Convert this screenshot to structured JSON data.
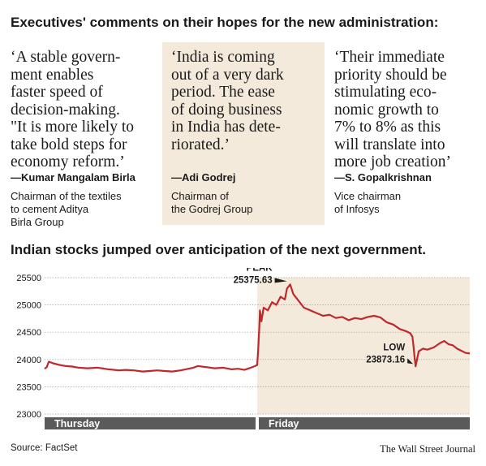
{
  "quotes_heading": "Executives' comments on their hopes for the new administration:",
  "quotes": [
    {
      "text": "‘A stable govern-\nment enables\nfaster speed of\ndecision-making.\n\"It is more likely to\ntake bold steps for\neconomy reform.’",
      "attribution": "—Kumar Mangalam Birla",
      "role": "Chairman of the textiles\nto cement Aditya\nBirla Group"
    },
    {
      "text": "‘India is coming\nout of a very dark\nperiod. The ease\nof doing business\nin India has dete-\nriorated.’",
      "attribution": "—Adi Godrej",
      "role": "Chairman of\nthe Godrej Group"
    },
    {
      "text": "‘Their immediate\npriority should be\nstimulating eco-\nnomic growth to\n7% to 8% as this\nwill translate into\nmore job creation’",
      "attribution": "—S. Gopalkrishnan",
      "role": "Vice chairman\nof Infosys"
    }
  ],
  "chart_heading": "Indian stocks jumped over anticipation of the next government.",
  "chart_data": {
    "type": "line",
    "title": "Indian stocks jumped over anticipation of the next government.",
    "xlabel": "",
    "ylabel": "",
    "x_categories": [
      "Thursday",
      "Friday"
    ],
    "ylim": [
      23000,
      25500
    ],
    "y_ticks": [
      23000,
      23500,
      24000,
      24500,
      25000,
      25500
    ],
    "grid": true,
    "line_color": "#c0282d",
    "friday_shade_color": "#f3eadb",
    "series": [
      {
        "points": [
          [
            0,
            23830
          ],
          [
            0.01,
            23860
          ],
          [
            0.02,
            23960
          ],
          [
            0.04,
            23930
          ],
          [
            0.07,
            23900
          ],
          [
            0.1,
            23880
          ],
          [
            0.13,
            23870
          ],
          [
            0.16,
            23850
          ],
          [
            0.2,
            23840
          ],
          [
            0.25,
            23850
          ],
          [
            0.3,
            23820
          ],
          [
            0.35,
            23800
          ],
          [
            0.38,
            23810
          ],
          [
            0.42,
            23800
          ],
          [
            0.46,
            23780
          ],
          [
            0.5,
            23790
          ],
          [
            0.53,
            23800
          ],
          [
            0.56,
            23790
          ],
          [
            0.6,
            23780
          ],
          [
            0.64,
            23800
          ],
          [
            0.7,
            23850
          ],
          [
            0.72,
            23880
          ],
          [
            0.76,
            23860
          ],
          [
            0.8,
            23840
          ],
          [
            0.84,
            23850
          ],
          [
            0.88,
            23820
          ],
          [
            0.91,
            23830
          ],
          [
            0.94,
            23810
          ],
          [
            0.97,
            23850
          ],
          [
            0.99,
            23880
          ],
          [
            1.0,
            23900
          ],
          [
            1.005,
            24200
          ],
          [
            1.01,
            24600
          ],
          [
            1.013,
            24900
          ],
          [
            1.02,
            24700
          ],
          [
            1.03,
            24950
          ],
          [
            1.05,
            24900
          ],
          [
            1.07,
            25050
          ],
          [
            1.09,
            25000
          ],
          [
            1.11,
            25150
          ],
          [
            1.13,
            25100
          ],
          [
            1.14,
            25300
          ],
          [
            1.155,
            25375.63
          ],
          [
            1.17,
            25200
          ],
          [
            1.19,
            25100
          ],
          [
            1.22,
            24950
          ],
          [
            1.25,
            24900
          ],
          [
            1.28,
            24850
          ],
          [
            1.31,
            24800
          ],
          [
            1.34,
            24820
          ],
          [
            1.37,
            24760
          ],
          [
            1.4,
            24780
          ],
          [
            1.43,
            24720
          ],
          [
            1.46,
            24760
          ],
          [
            1.49,
            24740
          ],
          [
            1.52,
            24780
          ],
          [
            1.55,
            24800
          ],
          [
            1.58,
            24770
          ],
          [
            1.61,
            24680
          ],
          [
            1.64,
            24640
          ],
          [
            1.67,
            24560
          ],
          [
            1.7,
            24520
          ],
          [
            1.72,
            24480
          ],
          [
            1.73,
            24420
          ],
          [
            1.735,
            24250
          ],
          [
            1.74,
            24050
          ],
          [
            1.745,
            23873.16
          ],
          [
            1.76,
            24150
          ],
          [
            1.78,
            24200
          ],
          [
            1.8,
            24180
          ],
          [
            1.83,
            24220
          ],
          [
            1.86,
            24300
          ],
          [
            1.88,
            24340
          ],
          [
            1.9,
            24280
          ],
          [
            1.92,
            24260
          ],
          [
            1.94,
            24200
          ],
          [
            1.96,
            24160
          ],
          [
            1.98,
            24120
          ],
          [
            2.0,
            24110
          ]
        ]
      }
    ],
    "annotations": [
      {
        "label": "PEAK",
        "value_text": "25375.63",
        "x": 1.155,
        "y": 25375.63
      },
      {
        "label": "LOW",
        "value_text": "23873.16",
        "x": 1.745,
        "y": 23873.16
      }
    ]
  },
  "footer": {
    "source": "Source: FactSet",
    "publisher": "The Wall Street Journal"
  }
}
